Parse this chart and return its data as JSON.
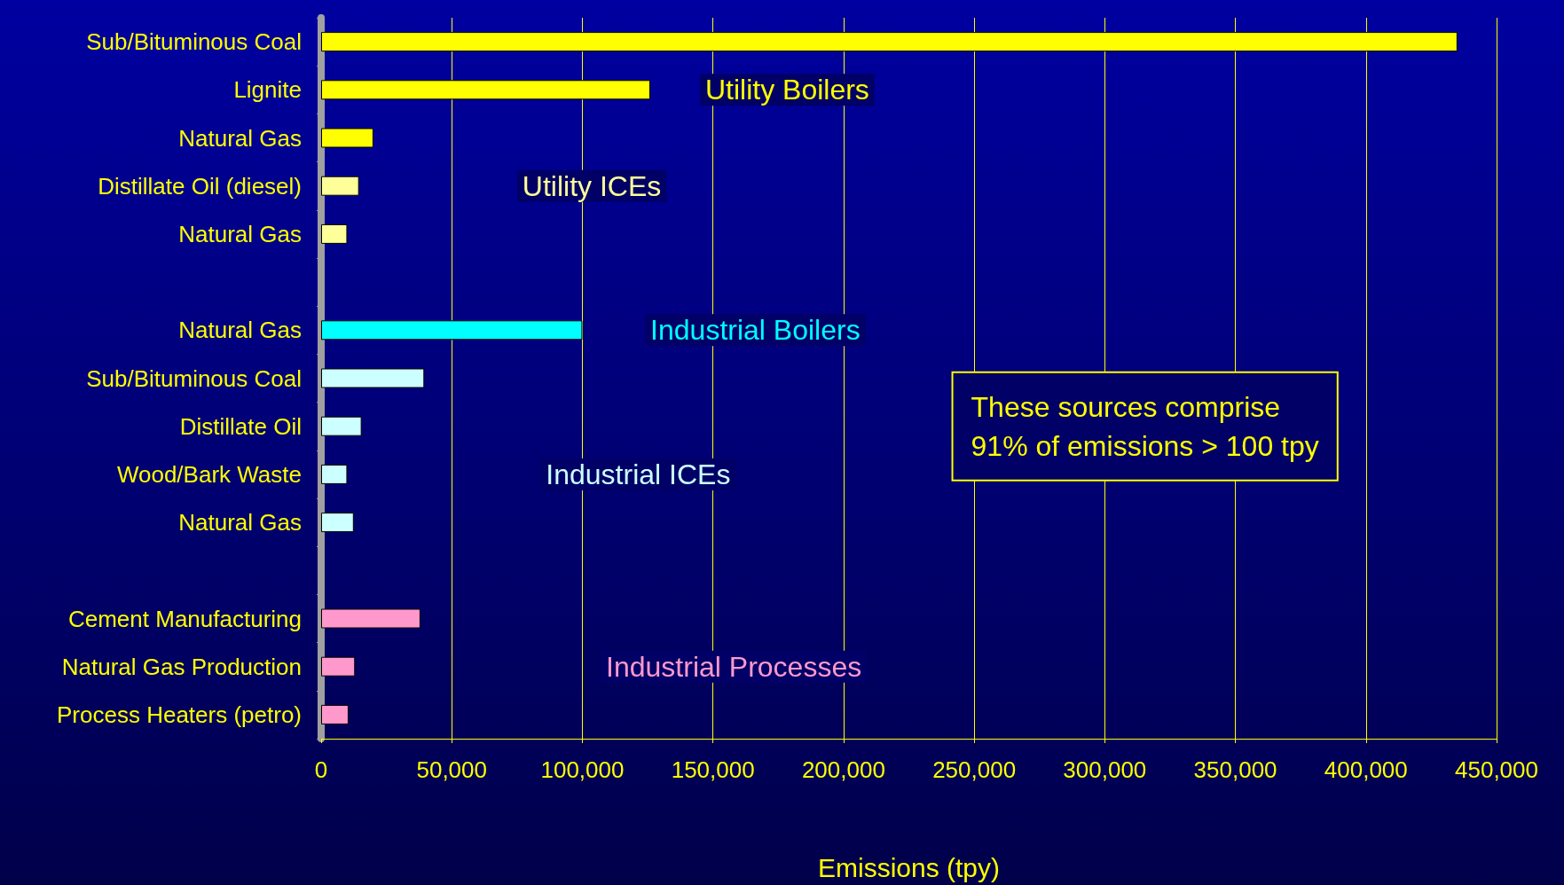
{
  "chart_data": {
    "type": "bar",
    "orientation": "horizontal",
    "xlabel": "Emissions (tpy)",
    "categories": [
      "Sub/Bituminous Coal",
      "Lignite",
      "Natural Gas",
      "Distillate Oil (diesel)",
      "Natural Gas",
      null,
      "Natural Gas",
      "Sub/Bituminous Coal",
      "Distillate Oil",
      "Wood/Bark Waste",
      "Natural Gas",
      null,
      "Cement Manufacturing",
      "Natural Gas Production",
      "Process Heaters (petro)"
    ],
    "values": [
      435000,
      126000,
      20000,
      14500,
      10000,
      null,
      100000,
      39500,
      15500,
      10000,
      12500,
      null,
      38000,
      13000,
      10500
    ],
    "colors": [
      "#ffff00",
      "#ffff00",
      "#ffff00",
      "#ffff99",
      "#ffff99",
      null,
      "#00ffff",
      "#ccffff",
      "#ccffff",
      "#ccffff",
      "#ccffff",
      null,
      "#ff99cc",
      "#ff99cc",
      "#ff99cc"
    ],
    "xlim": [
      0,
      450000
    ],
    "xticks": [
      0,
      {
        "value": 50000,
        "label": "50,000"
      },
      {
        "value": 100000,
        "label": "100,000"
      },
      {
        "value": 150000,
        "label": "150,000"
      },
      {
        "value": 200000,
        "label": "200,000"
      },
      {
        "value": 250000,
        "label": "250,000"
      },
      {
        "value": 300000,
        "label": "300,000"
      },
      {
        "value": 350000,
        "label": "350,000"
      },
      {
        "value": 400000,
        "label": "400,000"
      },
      {
        "value": 450000,
        "label": "450,000"
      }
    ],
    "grid": "x",
    "annotations": [
      "Utility Boilers",
      "Utility ICEs",
      "Industrial Boilers",
      "Industrial ICEs",
      "Industrial Processes",
      "These sources comprise\n91% of emissions > 100 tpy"
    ]
  }
}
